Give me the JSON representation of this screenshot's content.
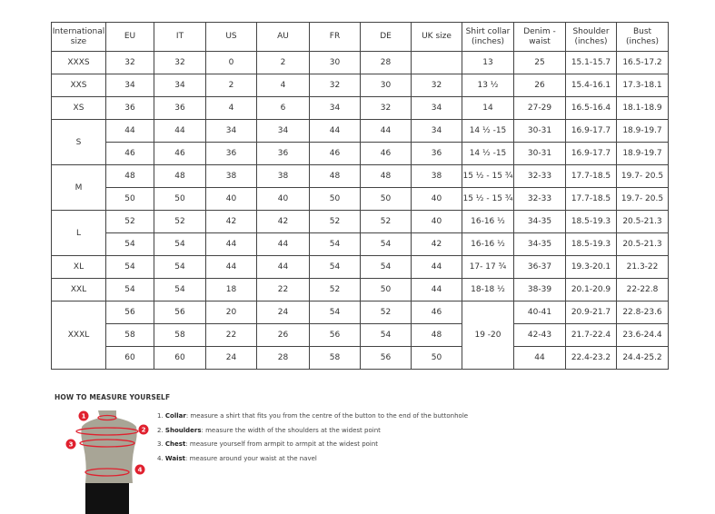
{
  "table": {
    "headers": [
      "International size",
      "EU",
      "IT",
      "US",
      "AU",
      "FR",
      "DE",
      "UK size",
      "Shirt collar (inches)",
      "Denim - waist",
      "Shoulder (inches)",
      "Bust (inches)"
    ],
    "groups": [
      {
        "size": "XXXS",
        "rows": [
          [
            "32",
            "32",
            "0",
            "2",
            "30",
            "28",
            "",
            "13",
            "25",
            "15.1-15.7",
            "16.5-17.2"
          ]
        ]
      },
      {
        "size": "XXS",
        "rows": [
          [
            "34",
            "34",
            "2",
            "4",
            "32",
            "30",
            "32",
            "13 ½",
            "26",
            "15.4-16.1",
            "17.3-18.1"
          ]
        ]
      },
      {
        "size": "XS",
        "rows": [
          [
            "36",
            "36",
            "4",
            "6",
            "34",
            "32",
            "34",
            "14",
            "27-29",
            "16.5-16.4",
            "18.1-18.9"
          ]
        ]
      },
      {
        "size": "S",
        "rows": [
          [
            "44",
            "44",
            "34",
            "34",
            "44",
            "44",
            "34",
            "14 ½ -15",
            "30-31",
            "16.9-17.7",
            "18.9-19.7"
          ],
          [
            "46",
            "46",
            "36",
            "36",
            "46",
            "46",
            "36",
            "14 ½ -15",
            "30-31",
            "16.9-17.7",
            "18.9-19.7"
          ]
        ]
      },
      {
        "size": "M",
        "rows": [
          [
            "48",
            "48",
            "38",
            "38",
            "48",
            "48",
            "38",
            "15 ½ - 15 ¾",
            "32-33",
            "17.7-18.5",
            "19.7- 20.5"
          ],
          [
            "50",
            "50",
            "40",
            "40",
            "50",
            "50",
            "40",
            "15 ½ - 15 ¾",
            "32-33",
            "17.7-18.5",
            "19.7- 20.5"
          ]
        ]
      },
      {
        "size": "L",
        "rows": [
          [
            "52",
            "52",
            "42",
            "42",
            "52",
            "52",
            "40",
            "16-16 ½",
            "34-35",
            "18.5-19.3",
            "20.5-21.3"
          ],
          [
            "54",
            "54",
            "44",
            "44",
            "54",
            "54",
            "42",
            "16-16 ½",
            "34-35",
            "18.5-19.3",
            "20.5-21.3"
          ]
        ]
      },
      {
        "size": "XL",
        "rows": [
          [
            "54",
            "54",
            "44",
            "44",
            "54",
            "54",
            "44",
            "17- 17 ¾",
            "36-37",
            "19.3-20.1",
            "21.3-22"
          ]
        ]
      },
      {
        "size": "XXL",
        "rows": [
          [
            "54",
            "54",
            "18",
            "22",
            "52",
            "50",
            "44",
            "18-18 ½",
            "38-39",
            "20.1-20.9",
            "22-22.8"
          ]
        ]
      },
      {
        "size": "XXXL",
        "collar": "19 -20",
        "rows": [
          [
            "56",
            "56",
            "20",
            "24",
            "54",
            "52",
            "46",
            "",
            "40-41",
            "20.9-21.7",
            "22.8-23.6"
          ],
          [
            "58",
            "58",
            "22",
            "26",
            "56",
            "54",
            "48",
            "",
            "42-43",
            "21.7-22.4",
            "23.6-24.4"
          ],
          [
            "60",
            "60",
            "24",
            "28",
            "58",
            "56",
            "50",
            "",
            "44",
            "22.4-23.2",
            "24.4-25.2"
          ]
        ]
      }
    ]
  },
  "measure": {
    "title": "HOW TO MEASURE YOURSELF",
    "steps": [
      {
        "num": "1",
        "label": "Collar",
        "text": ": measure a shirt that fits you from the centre of the button to the end of the buttonhole"
      },
      {
        "num": "2",
        "label": "Shoulders",
        "text": ": measure the width of the shoulders at the widest point"
      },
      {
        "num": "3",
        "label": "Chest",
        "text": ": measure yourself from armpit to armpit at the widest point"
      },
      {
        "num": "4",
        "label": "Waist",
        "text": ": measure around your waist at the navel"
      }
    ],
    "colors": {
      "accent": "#e0202e",
      "body": "#a8a596"
    }
  }
}
